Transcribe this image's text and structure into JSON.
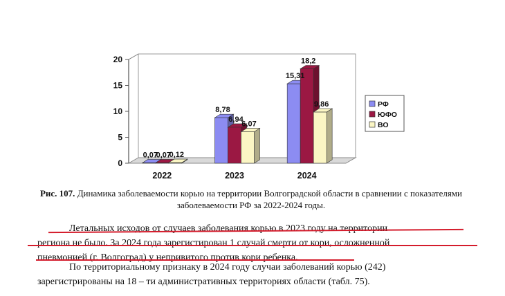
{
  "chart_data": {
    "type": "bar",
    "categories": [
      "2022",
      "2023",
      "2024"
    ],
    "series": [
      {
        "name": "РФ",
        "values": [
          0.07,
          8.78,
          15.31
        ],
        "labels": [
          "0,07",
          "8,78",
          "15,31"
        ],
        "color": "#8c8cf2"
      },
      {
        "name": "ЮФО",
        "values": [
          0.07,
          6.94,
          18.2
        ],
        "labels": [
          "0,07",
          "6,94",
          "18,2"
        ],
        "color": "#9b1843"
      },
      {
        "name": "ВО",
        "values": [
          0.12,
          6.07,
          9.86
        ],
        "labels": [
          "0,12",
          "6,07",
          "9,86"
        ],
        "color": "#fbf6c4"
      }
    ],
    "yticks": [
      "0",
      "5",
      "10",
      "15",
      "20"
    ],
    "ylim": [
      0,
      20
    ],
    "legend_position": "right",
    "grid": false
  },
  "caption": {
    "label": "Рис. 107.",
    "text": " Динамика заболеваемости корью на территории Волгоградской области в сравнении с показателями заболеваемости РФ за 2022-2024 годы."
  },
  "paragraph1": {
    "line1": "Летальных исходов от случаев заболевания корью в 2023 году на территории",
    "line2": "региона не было.  За 2024 года зарегистирован 1 случай смерти от кори, осложненной",
    "line3": "пневмонией (г. Волгоград) у непривитого против кори ребенка."
  },
  "paragraph2": {
    "line1": "По территориальному признаку в 2024 году случаи заболеваний корью (242)",
    "line2": "зарегистрированы на 18 – ти административных территориях области (табл. 75)."
  },
  "colors": {
    "underline": "#d41c2c"
  }
}
